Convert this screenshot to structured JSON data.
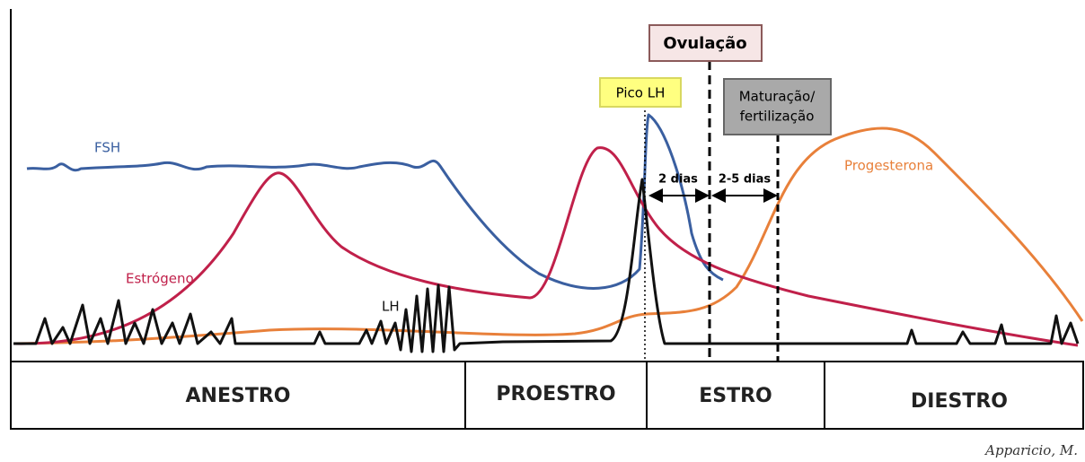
{
  "labels": {
    "ovulation": "Ovulação",
    "lh_peak": "Pico LH",
    "maturation": [
      "Maturação/",
      "fertilização"
    ],
    "interval_1": "2 dias",
    "interval_2": "2-5 dias",
    "fsh": "FSH",
    "progesterone": "Progesterona",
    "estrogen": "Estrógeno",
    "lh": "LH"
  },
  "phases": [
    "ANESTRO",
    "PROESTRO",
    "ESTRO",
    "DIESTRO"
  ],
  "credit": "Apparicio, M."
}
